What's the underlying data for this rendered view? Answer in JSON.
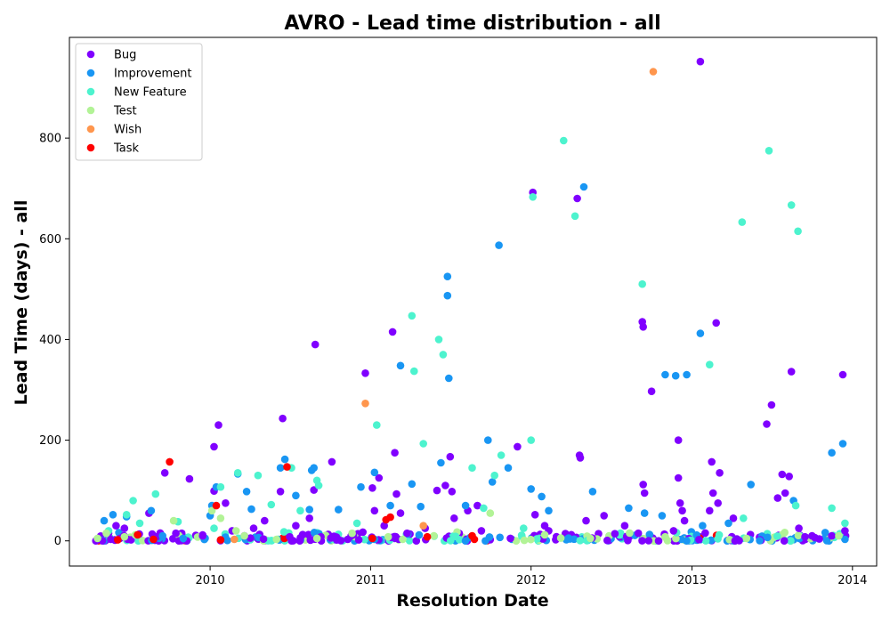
{
  "chart_data": {
    "type": "scatter",
    "title": "AVRO - Lead time distribution - all",
    "xlabel": "Resolution Date",
    "ylabel": "Lead Time (days) - all",
    "x_scale": "date",
    "xlim": [
      "2009-02-15",
      "2014-02-25"
    ],
    "ylim": [
      -50,
      1000
    ],
    "xticks": [
      "2010",
      "2011",
      "2012",
      "2013",
      "2014"
    ],
    "yticks": [
      0,
      200,
      400,
      600,
      800
    ],
    "grid": false,
    "legend_position": "top-left",
    "series": [
      {
        "name": "Bug",
        "color": "#8000ff",
        "points": [
          [
            "2009-05-01",
            0
          ],
          [
            "2009-05-15",
            15
          ],
          [
            "2009-05-20",
            3
          ],
          [
            "2009-06-01",
            30
          ],
          [
            "2009-06-10",
            5
          ],
          [
            "2009-06-20",
            25
          ],
          [
            "2009-07-05",
            2
          ],
          [
            "2009-08-15",
            55
          ],
          [
            "2009-09-01",
            8
          ],
          [
            "2009-09-20",
            135
          ],
          [
            "2009-10-15",
            15
          ],
          [
            "2009-11-15",
            123
          ],
          [
            "2009-12-15",
            10
          ],
          [
            "2010-01-10",
            99
          ],
          [
            "2010-01-10",
            187
          ],
          [
            "2010-01-20",
            230
          ],
          [
            "2010-02-05",
            75
          ],
          [
            "2010-02-20",
            20
          ],
          [
            "2010-03-20",
            10
          ],
          [
            "2010-04-10",
            25
          ],
          [
            "2010-05-05",
            40
          ],
          [
            "2010-06-10",
            98
          ],
          [
            "2010-06-15",
            243
          ],
          [
            "2010-07-01",
            8
          ],
          [
            "2010-07-15",
            30
          ],
          [
            "2010-08-15",
            45
          ],
          [
            "2010-08-25",
            101
          ],
          [
            "2010-08-28",
            390
          ],
          [
            "2010-09-10",
            8
          ],
          [
            "2010-10-05",
            157
          ],
          [
            "2010-11-10",
            3
          ],
          [
            "2010-12-05",
            2
          ],
          [
            "2010-12-20",
            333
          ],
          [
            "2011-01-05",
            105
          ],
          [
            "2011-01-10",
            60
          ],
          [
            "2011-01-20",
            125
          ],
          [
            "2011-02-01",
            30
          ],
          [
            "2011-02-20",
            415
          ],
          [
            "2011-02-25",
            175
          ],
          [
            "2011-03-01",
            93
          ],
          [
            "2011-03-10",
            55
          ],
          [
            "2011-03-25",
            15
          ],
          [
            "2011-05-05",
            25
          ],
          [
            "2011-06-01",
            100
          ],
          [
            "2011-06-20",
            110
          ],
          [
            "2011-07-01",
            167
          ],
          [
            "2011-07-05",
            98
          ],
          [
            "2011-07-10",
            45
          ],
          [
            "2011-08-10",
            60
          ],
          [
            "2011-09-01",
            70
          ],
          [
            "2011-09-10",
            20
          ],
          [
            "2011-11-15",
            5
          ],
          [
            "2011-12-01",
            187
          ],
          [
            "2012-01-05",
            692
          ],
          [
            "2012-01-10",
            52
          ],
          [
            "2012-02-01",
            30
          ],
          [
            "2012-02-10",
            20
          ],
          [
            "2012-04-15",
            680
          ],
          [
            "2012-04-20",
            170
          ],
          [
            "2012-04-22",
            165
          ],
          [
            "2012-05-05",
            40
          ],
          [
            "2012-06-15",
            50
          ],
          [
            "2012-08-01",
            30
          ],
          [
            "2012-09-01",
            15
          ],
          [
            "2012-09-10",
            435
          ],
          [
            "2012-09-12",
            425
          ],
          [
            "2012-09-12",
            112
          ],
          [
            "2012-09-15",
            95
          ],
          [
            "2012-10-01",
            297
          ],
          [
            "2012-11-20",
            20
          ],
          [
            "2012-12-01",
            200
          ],
          [
            "2012-12-01",
            125
          ],
          [
            "2012-12-05",
            75
          ],
          [
            "2012-12-10",
            60
          ],
          [
            "2012-12-15",
            40
          ],
          [
            "2013-01-20",
            952
          ],
          [
            "2013-02-15",
            157
          ],
          [
            "2013-02-18",
            95
          ],
          [
            "2013-02-25",
            433
          ],
          [
            "2013-03-01",
            75
          ],
          [
            "2013-03-05",
            135
          ],
          [
            "2013-02-10",
            60
          ],
          [
            "2013-04-05",
            45
          ],
          [
            "2013-06-20",
            232
          ],
          [
            "2013-07-01",
            270
          ],
          [
            "2013-07-15",
            85
          ],
          [
            "2013-07-25",
            132
          ],
          [
            "2013-08-01",
            95
          ],
          [
            "2013-08-10",
            128
          ],
          [
            "2013-08-15",
            336
          ],
          [
            "2013-09-01",
            25
          ],
          [
            "2013-09-15",
            8
          ],
          [
            "2013-10-01",
            10
          ],
          [
            "2013-11-15",
            10
          ],
          [
            "2013-12-10",
            330
          ],
          [
            "2013-12-15",
            20
          ]
        ]
      },
      {
        "name": "Improvement",
        "color": "#1996f3",
        "points": [
          [
            "2009-05-05",
            40
          ],
          [
            "2009-05-25",
            52
          ],
          [
            "2009-06-25",
            48
          ],
          [
            "2009-08-20",
            60
          ],
          [
            "2009-09-15",
            10
          ],
          [
            "2009-11-01",
            5
          ],
          [
            "2010-01-01",
            50
          ],
          [
            "2010-01-05",
            70
          ],
          [
            "2010-01-15",
            107
          ],
          [
            "2010-03-05",
            133
          ],
          [
            "2010-03-25",
            98
          ],
          [
            "2010-04-05",
            63
          ],
          [
            "2010-06-10",
            145
          ],
          [
            "2010-06-20",
            162
          ],
          [
            "2010-07-15",
            90
          ],
          [
            "2010-08-15",
            62
          ],
          [
            "2010-08-20",
            140
          ],
          [
            "2010-08-25",
            145
          ],
          [
            "2010-10-20",
            62
          ],
          [
            "2010-12-10",
            107
          ],
          [
            "2011-01-10",
            136
          ],
          [
            "2011-02-15",
            70
          ],
          [
            "2011-03-10",
            348
          ],
          [
            "2011-04-05",
            113
          ],
          [
            "2011-04-25",
            68
          ],
          [
            "2011-06-10",
            155
          ],
          [
            "2011-06-25",
            525
          ],
          [
            "2011-06-25",
            487
          ],
          [
            "2011-06-28",
            323
          ],
          [
            "2011-08-05",
            70
          ],
          [
            "2011-09-25",
            200
          ],
          [
            "2011-10-05",
            117
          ],
          [
            "2011-10-20",
            587
          ],
          [
            "2011-11-10",
            145
          ],
          [
            "2012-01-01",
            103
          ],
          [
            "2012-01-25",
            88
          ],
          [
            "2012-02-10",
            60
          ],
          [
            "2012-04-30",
            703
          ],
          [
            "2012-05-20",
            98
          ],
          [
            "2012-08-10",
            65
          ],
          [
            "2012-09-15",
            55
          ],
          [
            "2012-10-25",
            50
          ],
          [
            "2012-11-01",
            330
          ],
          [
            "2012-11-25",
            328
          ],
          [
            "2012-12-20",
            330
          ],
          [
            "2013-01-20",
            412
          ],
          [
            "2013-01-25",
            30
          ],
          [
            "2013-03-25",
            35
          ],
          [
            "2013-05-15",
            112
          ],
          [
            "2013-08-20",
            80
          ],
          [
            "2013-11-15",
            175
          ],
          [
            "2013-12-10",
            193
          ],
          [
            "2013-12-15",
            3
          ]
        ]
      },
      {
        "name": "New Feature",
        "color": "#4df3ce",
        "points": [
          [
            "2009-05-15",
            20
          ],
          [
            "2009-06-25",
            52
          ],
          [
            "2009-07-10",
            80
          ],
          [
            "2009-07-25",
            35
          ],
          [
            "2009-08-30",
            93
          ],
          [
            "2009-10-20",
            38
          ],
          [
            "2010-01-10",
            25
          ],
          [
            "2010-01-25",
            107
          ],
          [
            "2010-03-05",
            135
          ],
          [
            "2010-04-20",
            130
          ],
          [
            "2010-05-20",
            72
          ],
          [
            "2010-07-05",
            145
          ],
          [
            "2010-07-25",
            60
          ],
          [
            "2010-09-01",
            120
          ],
          [
            "2010-09-05",
            110
          ],
          [
            "2010-12-01",
            35
          ],
          [
            "2011-01-15",
            230
          ],
          [
            "2011-04-05",
            447
          ],
          [
            "2011-04-10",
            337
          ],
          [
            "2011-05-01",
            193
          ],
          [
            "2011-06-05",
            400
          ],
          [
            "2011-06-15",
            370
          ],
          [
            "2011-08-20",
            145
          ],
          [
            "2011-09-15",
            65
          ],
          [
            "2011-10-10",
            130
          ],
          [
            "2011-10-25",
            170
          ],
          [
            "2011-12-15",
            25
          ],
          [
            "2012-01-01",
            200
          ],
          [
            "2012-01-05",
            683
          ],
          [
            "2012-03-15",
            795
          ],
          [
            "2012-04-10",
            645
          ],
          [
            "2012-09-10",
            510
          ],
          [
            "2013-02-10",
            350
          ],
          [
            "2013-04-25",
            633
          ],
          [
            "2013-04-28",
            45
          ],
          [
            "2013-06-25",
            775
          ],
          [
            "2013-08-15",
            667
          ],
          [
            "2013-08-25",
            70
          ],
          [
            "2013-08-30",
            615
          ],
          [
            "2013-11-15",
            65
          ],
          [
            "2013-12-15",
            35
          ]
        ]
      },
      {
        "name": "Test",
        "color": "#b2f396",
        "points": [
          [
            "2009-04-20",
            5
          ],
          [
            "2009-05-10",
            15
          ],
          [
            "2009-06-20",
            8
          ],
          [
            "2009-07-15",
            12
          ],
          [
            "2009-10-10",
            40
          ],
          [
            "2010-01-05",
            60
          ],
          [
            "2010-01-25",
            45
          ],
          [
            "2010-03-01",
            20
          ],
          [
            "2010-03-20",
            10
          ],
          [
            "2010-06-01",
            3
          ],
          [
            "2010-09-01",
            5
          ],
          [
            "2010-11-20",
            15
          ],
          [
            "2011-02-10",
            8
          ],
          [
            "2011-03-15",
            3
          ],
          [
            "2011-05-25",
            10
          ],
          [
            "2011-09-30",
            55
          ],
          [
            "2012-02-01",
            12
          ],
          [
            "2012-05-15",
            5
          ],
          [
            "2012-11-01",
            8
          ],
          [
            "2013-05-05",
            5
          ],
          [
            "2013-12-01",
            10
          ]
        ]
      },
      {
        "name": "Wish",
        "color": "#ff964d",
        "points": [
          [
            "2010-02-25",
            3
          ],
          [
            "2010-12-20",
            273
          ],
          [
            "2011-05-01",
            30
          ],
          [
            "2012-10-05",
            932
          ]
        ]
      },
      {
        "name": "Task",
        "color": "#ff0000",
        "points": [
          [
            "2009-06-05",
            2
          ],
          [
            "2009-07-20",
            12
          ],
          [
            "2009-08-25",
            3
          ],
          [
            "2009-10-01",
            157
          ],
          [
            "2010-01-15",
            70
          ],
          [
            "2010-01-25",
            2
          ],
          [
            "2010-06-25",
            147
          ],
          [
            "2011-01-05",
            5
          ],
          [
            "2011-02-05",
            42
          ],
          [
            "2011-02-15",
            47
          ],
          [
            "2011-05-10",
            8
          ],
          [
            "2011-08-20",
            10
          ],
          [
            "2011-08-25",
            3
          ]
        ]
      }
    ]
  },
  "bands": [
    {
      "start": "2009-04-15",
      "end": "2013-12-20",
      "n": 320,
      "maxY": 18,
      "mix": [
        40,
        25,
        20,
        12,
        0,
        3
      ]
    }
  ]
}
